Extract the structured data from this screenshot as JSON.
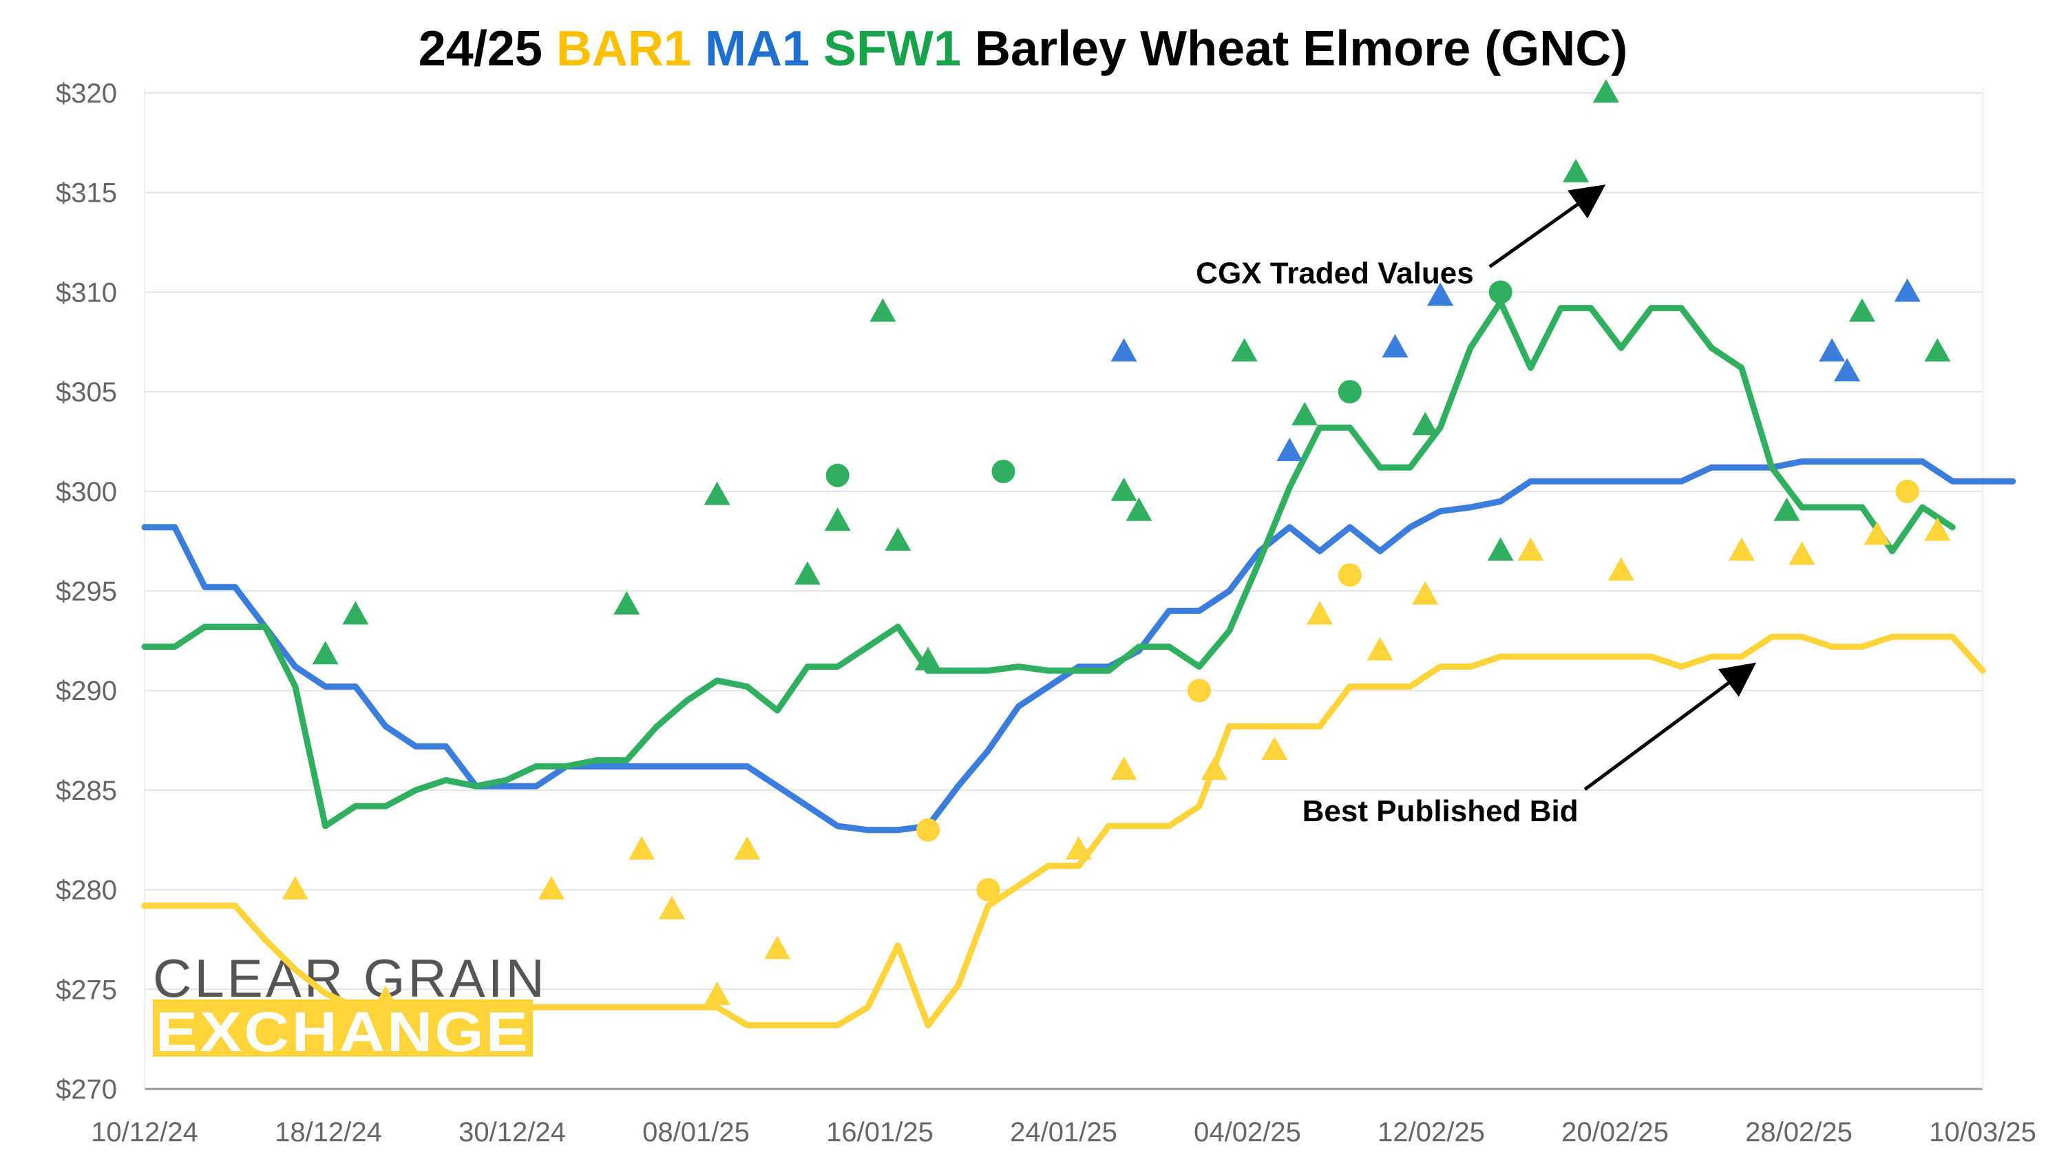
{
  "chart_data": {
    "type": "line",
    "title_parts": [
      {
        "text": "24/25 ",
        "color": "#000000"
      },
      {
        "text": "BAR1 ",
        "color": "#FFC000"
      },
      {
        "text": "MA1 ",
        "color": "#1F6FD1"
      },
      {
        "text": "SFW1 ",
        "color": "#16A34A"
      },
      {
        "text": "Barley Wheat Elmore (GNC)",
        "color": "#000000"
      }
    ],
    "x_tick_labels": [
      "10/12/24",
      "18/12/24",
      "30/12/24",
      "08/01/25",
      "16/01/25",
      "24/01/25",
      "04/02/25",
      "12/02/25",
      "20/02/25",
      "28/02/25",
      "10/03/25"
    ],
    "y_tick_labels": [
      "$270",
      "$275",
      "$280",
      "$285",
      "$290",
      "$295",
      "$300",
      "$305",
      "$310",
      "$315",
      "$320"
    ],
    "ylim": [
      270,
      320
    ],
    "grid": true,
    "colors": {
      "bar1": "#FFD43B",
      "ma1": "#3B7DDD",
      "sfw1": "#2FAF5F"
    },
    "series": [
      {
        "key": "bar1",
        "style": "line",
        "values": [
          279.2,
          279.2,
          279.2,
          279.2,
          277.5,
          276.0,
          274.8,
          274.1,
          274.1,
          274.1,
          274.1,
          274.1,
          274.1,
          274.1,
          274.1,
          274.1,
          274.1,
          274.1,
          274.1,
          274.1,
          273.2,
          273.2,
          273.2,
          273.2,
          274.1,
          277.2,
          273.2,
          275.2,
          279.2,
          280.2,
          281.2,
          281.2,
          283.2,
          283.2,
          283.2,
          284.2,
          288.2,
          288.2,
          288.2,
          288.2,
          290.2,
          290.2,
          290.2,
          291.2,
          291.2,
          291.7,
          291.7,
          291.7,
          291.7,
          291.7,
          291.7,
          291.2,
          291.7,
          291.7,
          292.7,
          292.7,
          292.2,
          292.2,
          292.7,
          292.7,
          292.7,
          291.0
        ]
      },
      {
        "key": "ma1",
        "style": "line",
        "values": [
          298.2,
          298.2,
          295.2,
          295.2,
          293.2,
          291.2,
          290.2,
          290.2,
          288.2,
          287.2,
          287.2,
          285.2,
          285.2,
          285.2,
          286.2,
          286.2,
          286.2,
          286.2,
          286.2,
          286.2,
          286.2,
          285.2,
          284.2,
          283.2,
          283.0,
          283.0,
          283.2,
          285.2,
          287.0,
          289.2,
          290.2,
          291.2,
          291.2,
          292.0,
          294.0,
          294.0,
          295.0,
          297.0,
          298.2,
          297.0,
          298.2,
          297.0,
          298.2,
          299.0,
          299.2,
          299.5,
          300.5,
          300.5,
          300.5,
          300.5,
          300.5,
          300.5,
          301.2,
          301.2,
          301.2,
          301.5,
          301.5,
          301.5,
          301.5,
          301.5,
          300.5,
          300.5,
          300.5
        ]
      },
      {
        "key": "sfw1",
        "style": "line",
        "values": [
          292.2,
          292.2,
          293.2,
          293.2,
          293.2,
          290.2,
          283.2,
          284.2,
          284.2,
          285.0,
          285.5,
          285.2,
          285.5,
          286.2,
          286.2,
          286.5,
          286.5,
          288.2,
          289.5,
          290.5,
          290.2,
          289.0,
          291.2,
          291.2,
          292.2,
          293.2,
          291.0,
          291.0,
          291.0,
          291.2,
          291.0,
          291.0,
          291.0,
          292.2,
          292.2,
          291.2,
          293.0,
          296.5,
          300.2,
          303.2,
          303.2,
          301.2,
          301.2,
          303.2,
          307.2,
          309.5,
          306.2,
          309.2,
          309.2,
          307.2,
          309.2,
          309.2,
          307.2,
          306.2,
          301.2,
          299.2,
          299.2,
          299.2,
          297.0,
          299.2,
          298.2
        ]
      },
      {
        "key": "bar1",
        "style": "triangles",
        "x": [
          5,
          8,
          13.5,
          16.5,
          17.5,
          19,
          20,
          21,
          31,
          32.5,
          35.5,
          37.5,
          39,
          41,
          42.5,
          46,
          49,
          53,
          55,
          57.5,
          59.5
        ],
        "values": [
          280,
          274.5,
          280,
          282,
          279,
          274.7,
          282,
          277,
          282,
          286,
          286,
          287,
          293.8,
          292,
          294.8,
          297,
          296,
          297,
          296.8,
          297.8,
          298
        ]
      },
      {
        "key": "bar1",
        "style": "circles",
        "x": [
          26,
          28,
          35,
          40,
          58.5
        ],
        "values": [
          283,
          280,
          290,
          295.8,
          300
        ]
      },
      {
        "key": "ma1",
        "style": "triangles",
        "x": [
          32.5,
          38,
          41.5,
          43,
          56,
          56.5,
          58.5
        ],
        "values": [
          307,
          302,
          307.2,
          309.8,
          307,
          306,
          310
        ]
      },
      {
        "key": "sfw1",
        "style": "triangles",
        "x": [
          6,
          7,
          16,
          19,
          22,
          23,
          24.5,
          25,
          26,
          32.5,
          33,
          36.5,
          38.5,
          42.5,
          45,
          47.5,
          48.5,
          54.5,
          57,
          59.5
        ],
        "values": [
          291.8,
          293.8,
          294.3,
          299.8,
          295.8,
          298.5,
          309,
          297.5,
          291.5,
          300,
          299,
          307,
          303.8,
          303.3,
          297,
          316,
          320,
          299,
          309,
          307
        ]
      },
      {
        "key": "sfw1",
        "style": "circles",
        "x": [
          23,
          28.5,
          40,
          45
        ],
        "values": [
          300.8,
          301,
          305,
          310
        ]
      }
    ],
    "annotations": [
      {
        "text": "CGX Traded Values",
        "x": 39.5,
        "y": 311
      },
      {
        "text": "Best Published Bid",
        "x": 43,
        "y": 284
      }
    ],
    "logo": {
      "line1": "CLEAR GRAIN",
      "line2": "EXCHANGE",
      "color": "#FFD43B"
    }
  }
}
